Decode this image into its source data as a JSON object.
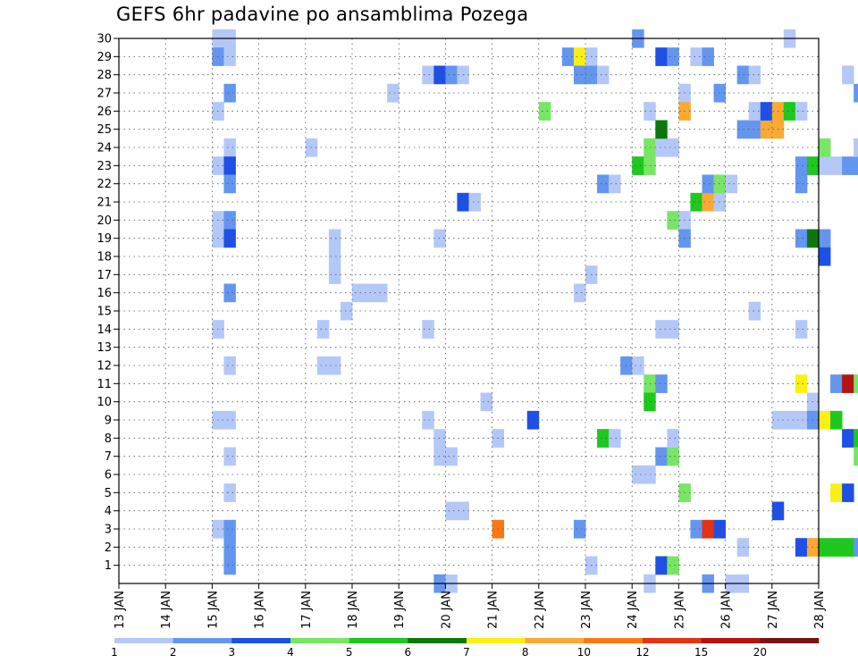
{
  "chart_data": {
    "type": "heatmap",
    "title": "GEFS 6hr padavine po ansamblima Pozega",
    "xlabel": "",
    "ylabel": "",
    "x_tick_labels": [
      "13 JAN",
      "14 JAN",
      "15 JAN",
      "16 JAN",
      "17 JAN",
      "18 JAN",
      "19 JAN",
      "20 JAN",
      "21 JAN",
      "22 JAN",
      "23 JAN",
      "24 JAN",
      "25 JAN",
      "26 JAN",
      "27 JAN",
      "28 JAN"
    ],
    "y_tick_labels": [
      "1",
      "2",
      "3",
      "4",
      "5",
      "6",
      "7",
      "8",
      "9",
      "10",
      "11",
      "12",
      "13",
      "14",
      "15",
      "16",
      "17",
      "18",
      "19",
      "20",
      "21",
      "22",
      "23",
      "24",
      "25",
      "26",
      "27",
      "28",
      "29",
      "30"
    ],
    "time_steps_per_day": 4,
    "members": 30,
    "grid": true,
    "colorbar": {
      "labels": [
        "1",
        "2",
        "3",
        "4",
        "5",
        "6",
        "7",
        "8",
        "10",
        "12",
        "15",
        "20"
      ],
      "colors": [
        "#b4c8f8",
        "#6496f0",
        "#1e50e6",
        "#78e664",
        "#1ec81e",
        "#0a780a",
        "#faf014",
        "#faaa32",
        "#fa7814",
        "#e63214",
        "#b41414",
        "#781414"
      ]
    },
    "cells": [
      {
        "d": "15 JAN 00",
        "m": 30,
        "c": 1
      },
      {
        "d": "15 JAN 06",
        "m": 30,
        "c": 1
      },
      {
        "d": "15 JAN 00",
        "m": 29,
        "c": 2
      },
      {
        "d": "15 JAN 06",
        "m": 29,
        "c": 1
      },
      {
        "d": "15 JAN 06",
        "m": 27,
        "c": 2
      },
      {
        "d": "15 JAN 00",
        "m": 26,
        "c": 1
      },
      {
        "d": "15 JAN 06",
        "m": 24,
        "c": 1
      },
      {
        "d": "15 JAN 00",
        "m": 23,
        "c": 1
      },
      {
        "d": "15 JAN 06",
        "m": 23,
        "c": 3
      },
      {
        "d": "15 JAN 06",
        "m": 22,
        "c": 2
      },
      {
        "d": "15 JAN 00",
        "m": 20,
        "c": 1
      },
      {
        "d": "15 JAN 06",
        "m": 20,
        "c": 2
      },
      {
        "d": "15 JAN 00",
        "m": 19,
        "c": 1
      },
      {
        "d": "15 JAN 06",
        "m": 19,
        "c": 3
      },
      {
        "d": "15 JAN 06",
        "m": 16,
        "c": 2
      },
      {
        "d": "15 JAN 00",
        "m": 14,
        "c": 1
      },
      {
        "d": "15 JAN 06",
        "m": 12,
        "c": 1
      },
      {
        "d": "15 JAN 00",
        "m": 9,
        "c": 1
      },
      {
        "d": "15 JAN 06",
        "m": 9,
        "c": 1
      },
      {
        "d": "15 JAN 06",
        "m": 7,
        "c": 1
      },
      {
        "d": "15 JAN 06",
        "m": 5,
        "c": 1
      },
      {
        "d": "15 JAN 00",
        "m": 3,
        "c": 1
      },
      {
        "d": "15 JAN 06",
        "m": 3,
        "c": 2
      },
      {
        "d": "15 JAN 06",
        "m": 2,
        "c": 2
      },
      {
        "d": "15 JAN 06",
        "m": 1,
        "c": 2
      },
      {
        "d": "17 JAN 00",
        "m": 24,
        "c": 1
      },
      {
        "d": "17 JAN 12",
        "m": 19,
        "c": 1
      },
      {
        "d": "17 JAN 12",
        "m": 18,
        "c": 1
      },
      {
        "d": "17 JAN 12",
        "m": 17,
        "c": 1
      },
      {
        "d": "17 JAN 06",
        "m": 14,
        "c": 1
      },
      {
        "d": "17 JAN 06",
        "m": 12,
        "c": 1
      },
      {
        "d": "17 JAN 12",
        "m": 12,
        "c": 1
      },
      {
        "d": "18 JAN 00",
        "m": 16,
        "c": 1
      },
      {
        "d": "18 JAN 06",
        "m": 16,
        "c": 1
      },
      {
        "d": "18 JAN 12",
        "m": 16,
        "c": 1
      },
      {
        "d": "17 JAN 18",
        "m": 15,
        "c": 1
      },
      {
        "d": "18 JAN 18",
        "m": 27,
        "c": 1
      },
      {
        "d": "19 JAN 12",
        "m": 28,
        "c": 1
      },
      {
        "d": "19 JAN 18",
        "m": 28,
        "c": 3
      },
      {
        "d": "20 JAN 00",
        "m": 28,
        "c": 2
      },
      {
        "d": "20 JAN 06",
        "m": 28,
        "c": 1
      },
      {
        "d": "19 JAN 18",
        "m": 19,
        "c": 1
      },
      {
        "d": "19 JAN 12",
        "m": 14,
        "c": 1
      },
      {
        "d": "19 JAN 12",
        "m": 9,
        "c": 1
      },
      {
        "d": "19 JAN 18",
        "m": 8,
        "c": 1
      },
      {
        "d": "19 JAN 18",
        "m": 7,
        "c": 1
      },
      {
        "d": "20 JAN 00",
        "m": 7,
        "c": 1
      },
      {
        "d": "20 JAN 00",
        "m": 4,
        "c": 1
      },
      {
        "d": "20 JAN 06",
        "m": 4,
        "c": 1
      },
      {
        "d": "19 JAN 18",
        "m": 0,
        "c": 2
      },
      {
        "d": "20 JAN 00",
        "m": 0,
        "c": 1
      },
      {
        "d": "20 JAN 06",
        "m": 21,
        "c": 3
      },
      {
        "d": "20 JAN 12",
        "m": 21,
        "c": 1
      },
      {
        "d": "20 JAN 18",
        "m": 10,
        "c": 1
      },
      {
        "d": "21 JAN 00",
        "m": 8,
        "c": 1
      },
      {
        "d": "21 JAN 00",
        "m": 3,
        "c": 9
      },
      {
        "d": "21 JAN 18",
        "m": 9,
        "c": 3
      },
      {
        "d": "22 JAN 00",
        "m": 26,
        "c": 4
      },
      {
        "d": "22 JAN 12",
        "m": 29,
        "c": 2
      },
      {
        "d": "22 JAN 18",
        "m": 29,
        "c": 7
      },
      {
        "d": "23 JAN 00",
        "m": 29,
        "c": 1
      },
      {
        "d": "22 JAN 18",
        "m": 28,
        "c": 2
      },
      {
        "d": "23 JAN 00",
        "m": 28,
        "c": 2
      },
      {
        "d": "23 JAN 06",
        "m": 28,
        "c": 1
      },
      {
        "d": "23 JAN 06",
        "m": 22,
        "c": 2
      },
      {
        "d": "23 JAN 12",
        "m": 22,
        "c": 1
      },
      {
        "d": "23 JAN 00",
        "m": 17,
        "c": 1
      },
      {
        "d": "22 JAN 18",
        "m": 16,
        "c": 1
      },
      {
        "d": "23 JAN 18",
        "m": 12,
        "c": 2
      },
      {
        "d": "24 JAN 00",
        "m": 12,
        "c": 1
      },
      {
        "d": "23 JAN 06",
        "m": 8,
        "c": 5
      },
      {
        "d": "23 JAN 12",
        "m": 8,
        "c": 1
      },
      {
        "d": "22 JAN 18",
        "m": 3,
        "c": 2
      },
      {
        "d": "23 JAN 00",
        "m": 1,
        "c": 1
      },
      {
        "d": "24 JAN 00",
        "m": 30,
        "c": 2
      },
      {
        "d": "24 JAN 06",
        "m": 26,
        "c": 1
      },
      {
        "d": "24 JAN 06",
        "m": 24,
        "c": 4
      },
      {
        "d": "24 JAN 12",
        "m": 24,
        "c": 1
      },
      {
        "d": "24 JAN 18",
        "m": 24,
        "c": 1
      },
      {
        "d": "24 JAN 00",
        "m": 23,
        "c": 5
      },
      {
        "d": "24 JAN 06",
        "m": 23,
        "c": 4
      },
      {
        "d": "24 JAN 12",
        "m": 25,
        "c": 6
      },
      {
        "d": "24 JAN 06",
        "m": 11,
        "c": 4
      },
      {
        "d": "24 JAN 12",
        "m": 11,
        "c": 2
      },
      {
        "d": "24 JAN 06",
        "m": 10,
        "c": 5
      },
      {
        "d": "24 JAN 00",
        "m": 6,
        "c": 1
      },
      {
        "d": "24 JAN 06",
        "m": 6,
        "c": 1
      },
      {
        "d": "24 JAN 06",
        "m": 0,
        "c": 1
      },
      {
        "d": "24 JAN 12",
        "m": 1,
        "c": 3
      },
      {
        "d": "24 JAN 18",
        "m": 1,
        "c": 4
      },
      {
        "d": "24 JAN 12",
        "m": 29,
        "c": 3
      },
      {
        "d": "24 JAN 18",
        "m": 29,
        "c": 2
      },
      {
        "d": "24 JAN 12",
        "m": 14,
        "c": 1
      },
      {
        "d": "24 JAN 18",
        "m": 14,
        "c": 1
      },
      {
        "d": "24 JAN 12",
        "m": 7,
        "c": 2
      },
      {
        "d": "24 JAN 18",
        "m": 7,
        "c": 4
      },
      {
        "d": "24 JAN 18",
        "m": 8,
        "c": 1
      },
      {
        "d": "24 JAN 18",
        "m": 20,
        "c": 4
      },
      {
        "d": "25 JAN 00",
        "m": 20,
        "c": 1
      },
      {
        "d": "25 JAN 00",
        "m": 19,
        "c": 2
      },
      {
        "d": "25 JAN 00",
        "m": 27,
        "c": 1
      },
      {
        "d": "25 JAN 00",
        "m": 26,
        "c": 8
      },
      {
        "d": "25 JAN 00",
        "m": 5,
        "c": 4
      },
      {
        "d": "25 JAN 06",
        "m": 29,
        "c": 1
      },
      {
        "d": "25 JAN 12",
        "m": 29,
        "c": 2
      },
      {
        "d": "25 JAN 18",
        "m": 27,
        "c": 2
      },
      {
        "d": "25 JAN 06",
        "m": 21,
        "c": 5
      },
      {
        "d": "25 JAN 12",
        "m": 21,
        "c": 8
      },
      {
        "d": "25 JAN 18",
        "m": 21,
        "c": 1
      },
      {
        "d": "25 JAN 12",
        "m": 22,
        "c": 2
      },
      {
        "d": "25 JAN 18",
        "m": 22,
        "c": 4
      },
      {
        "d": "26 JAN 00",
        "m": 22,
        "c": 1
      },
      {
        "d": "25 JAN 06",
        "m": 3,
        "c": 2
      },
      {
        "d": "25 JAN 12",
        "m": 3,
        "c": 10
      },
      {
        "d": "25 JAN 18",
        "m": 3,
        "c": 3
      },
      {
        "d": "25 JAN 12",
        "m": 0,
        "c": 2
      },
      {
        "d": "26 JAN 00",
        "m": 0,
        "c": 1
      },
      {
        "d": "26 JAN 06",
        "m": 0,
        "c": 1
      },
      {
        "d": "26 JAN 06",
        "m": 28,
        "c": 2
      },
      {
        "d": "26 JAN 12",
        "m": 28,
        "c": 1
      },
      {
        "d": "26 JAN 06",
        "m": 2,
        "c": 1
      },
      {
        "d": "26 JAN 12",
        "m": 15,
        "c": 1
      },
      {
        "d": "26 JAN 06",
        "m": 25,
        "c": 2
      },
      {
        "d": "26 JAN 12",
        "m": 25,
        "c": 2
      },
      {
        "d": "26 JAN 18",
        "m": 25,
        "c": 8
      },
      {
        "d": "27 JAN 00",
        "m": 25,
        "c": 8
      },
      {
        "d": "26 JAN 12",
        "m": 26,
        "c": 1
      },
      {
        "d": "26 JAN 18",
        "m": 26,
        "c": 3
      },
      {
        "d": "27 JAN 00",
        "m": 26,
        "c": 8
      },
      {
        "d": "27 JAN 06",
        "m": 26,
        "c": 5
      },
      {
        "d": "27 JAN 12",
        "m": 26,
        "c": 1
      },
      {
        "d": "27 JAN 06",
        "m": 30,
        "c": 1
      },
      {
        "d": "27 JAN 00",
        "m": 4,
        "c": 3
      },
      {
        "d": "27 JAN 12",
        "m": 23,
        "c": 2
      },
      {
        "d": "27 JAN 18",
        "m": 23,
        "c": 5
      },
      {
        "d": "28 JAN 00",
        "m": 23,
        "c": 1
      },
      {
        "d": "28 JAN 06",
        "m": 23,
        "c": 1
      },
      {
        "d": "28 JAN 12",
        "m": 23,
        "c": 2
      },
      {
        "d": "28 JAN 18",
        "m": 23,
        "c": 2
      },
      {
        "d": "27 JAN 12",
        "m": 22,
        "c": 2
      },
      {
        "d": "28 JAN 00",
        "m": 24,
        "c": 4
      },
      {
        "d": "28 JAN 18",
        "m": 24,
        "c": 1
      },
      {
        "d": "27 JAN 12",
        "m": 19,
        "c": 2
      },
      {
        "d": "27 JAN 18",
        "m": 19,
        "c": 6
      },
      {
        "d": "28 JAN 00",
        "m": 19,
        "c": 2
      },
      {
        "d": "28 JAN 00",
        "m": 18,
        "c": 3
      },
      {
        "d": "28 JAN 12",
        "m": 28,
        "c": 1
      },
      {
        "d": "28 JAN 18",
        "m": 27,
        "c": 2
      },
      {
        "d": "27 JAN 12",
        "m": 14,
        "c": 1
      },
      {
        "d": "27 JAN 12",
        "m": 11,
        "c": 7
      },
      {
        "d": "28 JAN 06",
        "m": 11,
        "c": 2
      },
      {
        "d": "28 JAN 12",
        "m": 11,
        "c": 11
      },
      {
        "d": "28 JAN 18",
        "m": 11,
        "c": 4
      },
      {
        "d": "27 JAN 18",
        "m": 10,
        "c": 1
      },
      {
        "d": "27 JAN 00",
        "m": 9,
        "c": 1
      },
      {
        "d": "27 JAN 06",
        "m": 9,
        "c": 1
      },
      {
        "d": "27 JAN 12",
        "m": 9,
        "c": 1
      },
      {
        "d": "27 JAN 18",
        "m": 9,
        "c": 2
      },
      {
        "d": "28 JAN 00",
        "m": 9,
        "c": 7
      },
      {
        "d": "28 JAN 06",
        "m": 9,
        "c": 5
      },
      {
        "d": "28 JAN 12",
        "m": 8,
        "c": 3
      },
      {
        "d": "28 JAN 18",
        "m": 8,
        "c": 5
      },
      {
        "d": "28 JAN 18",
        "m": 7,
        "c": 4
      },
      {
        "d": "28 JAN 06",
        "m": 5,
        "c": 7
      },
      {
        "d": "28 JAN 12",
        "m": 5,
        "c": 3
      },
      {
        "d": "27 JAN 12",
        "m": 2,
        "c": 3
      },
      {
        "d": "27 JAN 18",
        "m": 2,
        "c": 8
      },
      {
        "d": "28 JAN 00",
        "m": 2,
        "c": 5
      },
      {
        "d": "28 JAN 06",
        "m": 2,
        "c": 5
      },
      {
        "d": "28 JAN 12",
        "m": 2,
        "c": 5
      },
      {
        "d": "28 JAN 18",
        "m": 2,
        "c": 2
      }
    ]
  }
}
